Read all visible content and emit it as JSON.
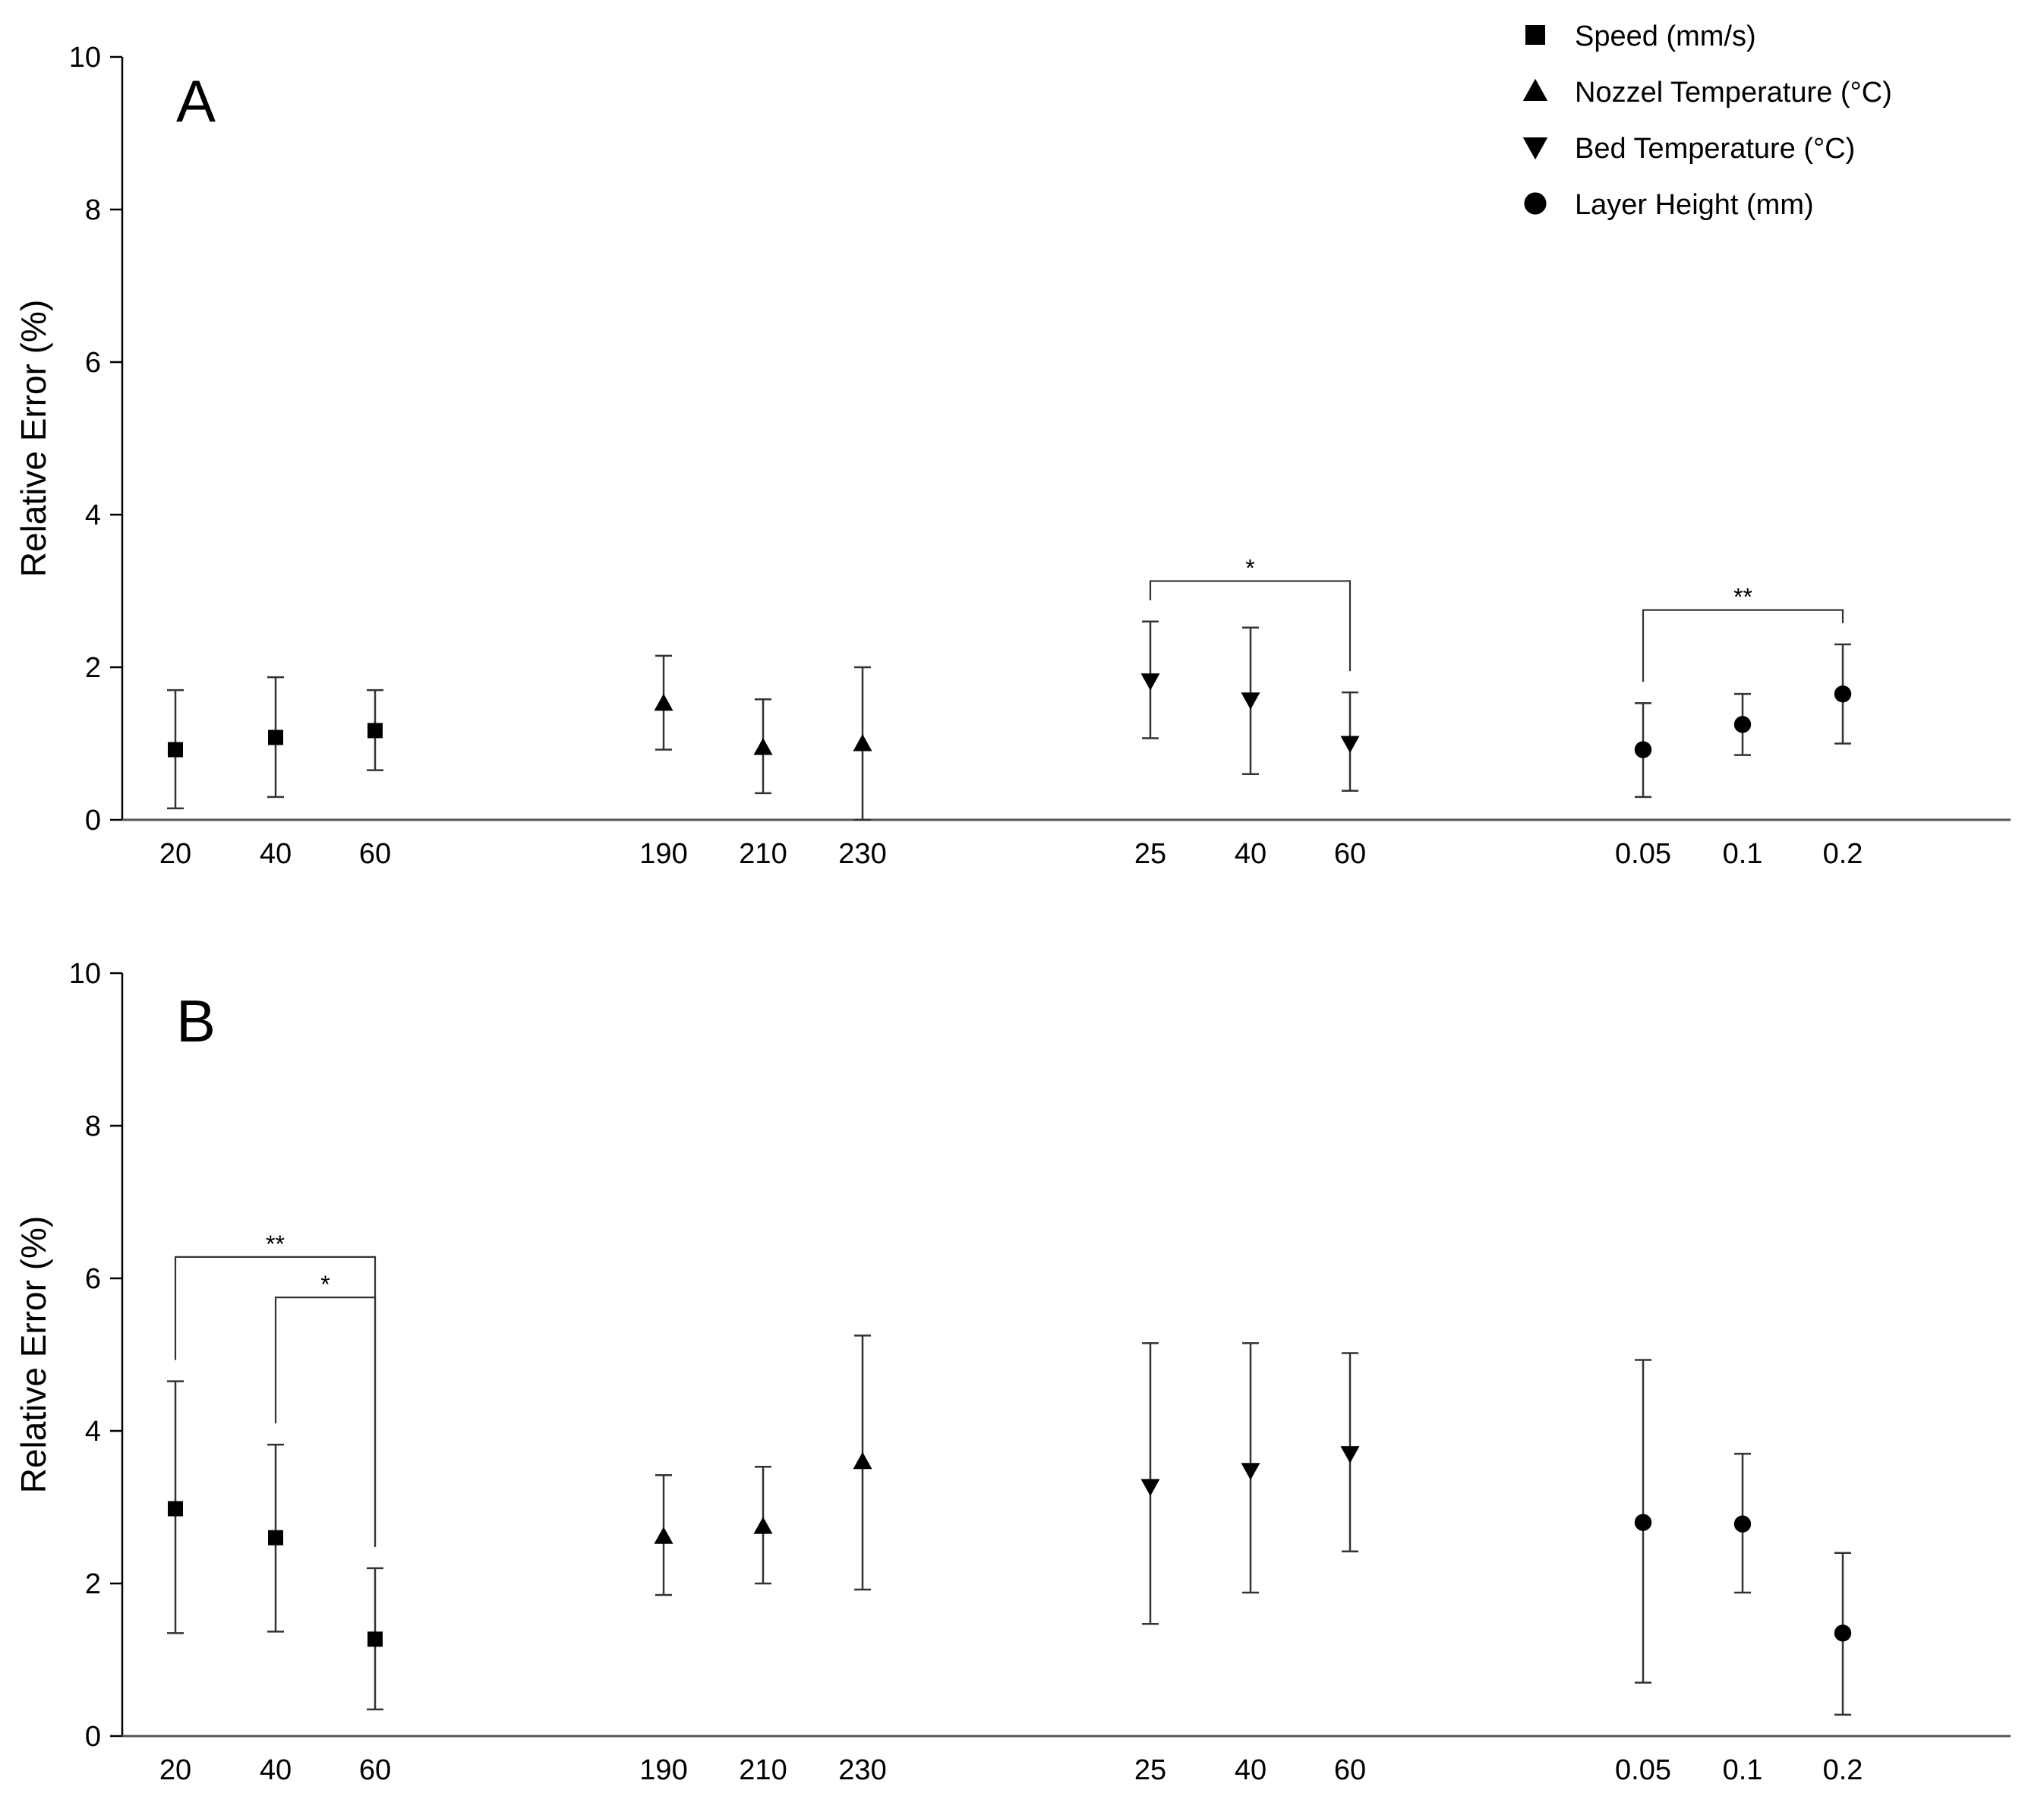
{
  "chart_data": [
    {
      "type": "scatter",
      "panel": "A",
      "ylabel": "Relative Error (%)",
      "ylim": [
        0,
        10
      ],
      "yticks": [
        0,
        2,
        4,
        6,
        8,
        10
      ],
      "groups": [
        {
          "name": "Speed (mm/s)",
          "marker": "square",
          "x": [
            "20",
            "40",
            "60"
          ],
          "y": [
            0.92,
            1.08,
            1.17
          ],
          "err_low": [
            0.15,
            0.3,
            0.65
          ],
          "err_high": [
            1.7,
            1.87,
            1.7
          ]
        },
        {
          "name": "Nozzel Temperature (°C)",
          "marker": "triangle-up",
          "x": [
            "190",
            "210",
            "230"
          ],
          "y": [
            1.53,
            0.95,
            1.0
          ],
          "err_low": [
            0.92,
            0.35,
            0.0
          ],
          "err_high": [
            2.15,
            1.58,
            2.0
          ]
        },
        {
          "name": "Bed Temperature (°C)",
          "marker": "triangle-down",
          "x": [
            "25",
            "40",
            "60"
          ],
          "y": [
            1.82,
            1.57,
            1.0
          ],
          "err_low": [
            1.07,
            0.6,
            0.38
          ],
          "err_high": [
            2.6,
            2.52,
            1.67
          ]
        },
        {
          "name": "Layer Height (mm)",
          "marker": "circle",
          "x": [
            "0.05",
            "0.1",
            "0.2"
          ],
          "y": [
            0.92,
            1.25,
            1.65
          ],
          "err_low": [
            0.3,
            0.85,
            1.0
          ],
          "err_high": [
            1.53,
            1.65,
            2.3
          ]
        }
      ],
      "significance": [
        {
          "label": "*",
          "from_group": 2,
          "from": 0,
          "to_group": 2,
          "to": 2,
          "level": 3.13
        },
        {
          "label": "**",
          "from_group": 3,
          "from": 0,
          "to_group": 3,
          "to": 2,
          "level": 2.75
        }
      ]
    },
    {
      "type": "scatter",
      "panel": "B",
      "ylabel": "Relative Error (%)",
      "ylim": [
        0,
        10
      ],
      "yticks": [
        0,
        2,
        4,
        6,
        8,
        10
      ],
      "groups": [
        {
          "name": "Speed (mm/s)",
          "marker": "square",
          "x": [
            "20",
            "40",
            "60"
          ],
          "y": [
            2.98,
            2.6,
            1.27
          ],
          "err_low": [
            1.35,
            1.37,
            0.35
          ],
          "err_high": [
            4.65,
            3.82,
            2.2
          ]
        },
        {
          "name": "Nozzel Temperature (°C)",
          "marker": "triangle-up",
          "x": [
            "190",
            "210",
            "230"
          ],
          "y": [
            2.62,
            2.75,
            3.6
          ],
          "err_low": [
            1.85,
            2.0,
            1.92
          ],
          "err_high": [
            3.42,
            3.53,
            5.25
          ]
        },
        {
          "name": "Bed Temperature (°C)",
          "marker": "triangle-down",
          "x": [
            "25",
            "40",
            "60"
          ],
          "y": [
            3.27,
            3.48,
            3.7
          ],
          "err_low": [
            1.47,
            1.88,
            2.42
          ],
          "err_high": [
            5.15,
            5.15,
            5.02
          ]
        },
        {
          "name": "Layer Height (mm)",
          "marker": "circle",
          "x": [
            "0.05",
            "0.1",
            "0.2"
          ],
          "y": [
            2.8,
            2.78,
            1.35
          ],
          "err_low": [
            0.7,
            1.88,
            0.28
          ],
          "err_high": [
            4.93,
            3.7,
            2.4
          ]
        }
      ],
      "significance": [
        {
          "label": "**",
          "from_group": 0,
          "from": 0,
          "to_group": 0,
          "to": 2,
          "level": 6.28
        },
        {
          "label": "*",
          "from_group": 0,
          "from": 1,
          "to_group": 0,
          "to": 2,
          "level": 5.75
        }
      ]
    }
  ],
  "legend": {
    "placement": "top-right",
    "entries": [
      {
        "label": "Speed (mm/s)",
        "marker": "square"
      },
      {
        "label": "Nozzel Temperature (°C)",
        "marker": "triangle-up"
      },
      {
        "label": "Bed Temperature (°C)",
        "marker": "triangle-down"
      },
      {
        "label": "Layer Height (mm)",
        "marker": "circle"
      }
    ]
  }
}
